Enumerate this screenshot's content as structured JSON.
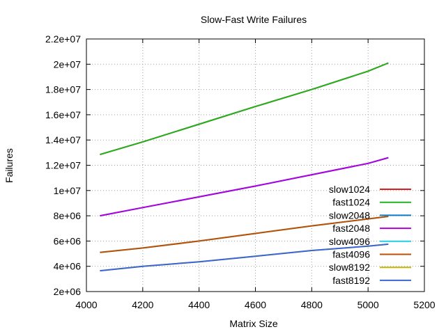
{
  "chart_data": {
    "type": "line",
    "title": "Slow-Fast Write Failures",
    "xlabel": "Matrix Size",
    "ylabel": "Failures",
    "xlim": [
      4000,
      5200
    ],
    "ylim": [
      2000000,
      22000000
    ],
    "xticks": [
      4000,
      4200,
      4400,
      4600,
      4800,
      5000,
      5200
    ],
    "xtick_labels": [
      "4000",
      "4200",
      "4400",
      "4600",
      "4800",
      "5000",
      "5200"
    ],
    "yticks": [
      2000000,
      4000000,
      6000000,
      8000000,
      10000000,
      12000000,
      14000000,
      16000000,
      18000000,
      20000000,
      22000000
    ],
    "ytick_labels": [
      "2e+06",
      "4e+06",
      "6e+06",
      "8e+06",
      "1e+07",
      "1.2e+07",
      "1.4e+07",
      "1.6e+07",
      "1.8e+07",
      "2e+07",
      "2.2e+07"
    ],
    "grid": true,
    "legend_position": "bottom-right",
    "series": [
      {
        "name": "slow1024",
        "color": "#e41a1c",
        "x": [
          4048,
          4200,
          4400,
          4600,
          4800,
          5000,
          5072
        ],
        "y": [
          12850000,
          13850000,
          15250000,
          16650000,
          18000000,
          19450000,
          20100000
        ]
      },
      {
        "name": "fast1024",
        "color": "#1fb31f",
        "x": [
          4048,
          4200,
          4400,
          4600,
          4800,
          5000,
          5072
        ],
        "y": [
          12850000,
          13850000,
          15250000,
          16650000,
          18000000,
          19450000,
          20100000
        ]
      },
      {
        "name": "slow2048",
        "color": "#0a7cc8",
        "x": [
          4048,
          4200,
          4400,
          4600,
          4800,
          5000,
          5072
        ],
        "y": [
          8000000,
          8650000,
          9500000,
          10350000,
          11250000,
          12150000,
          12600000
        ]
      },
      {
        "name": "fast2048",
        "color": "#b000e0",
        "x": [
          4048,
          4200,
          4400,
          4600,
          4800,
          5000,
          5072
        ],
        "y": [
          8000000,
          8650000,
          9500000,
          10350000,
          11250000,
          12150000,
          12600000
        ]
      },
      {
        "name": "slow4096",
        "color": "#1ecfe6",
        "x": [
          4048,
          4200,
          4400,
          4600,
          4800,
          5000,
          5072
        ],
        "y": [
          5100000,
          5450000,
          6000000,
          6600000,
          7200000,
          7750000,
          7950000
        ]
      },
      {
        "name": "fast4096",
        "color": "#c04e00",
        "x": [
          4048,
          4200,
          4400,
          4600,
          4800,
          5000,
          5072
        ],
        "y": [
          5100000,
          5450000,
          6000000,
          6600000,
          7200000,
          7750000,
          7950000
        ]
      },
      {
        "name": "slow8192",
        "color": "#c8b400",
        "x": [
          4048,
          4200,
          4400,
          4600,
          4800,
          5000,
          5072
        ],
        "y": [
          3650000,
          4000000,
          4350000,
          4800000,
          5250000,
          5600000,
          5750000
        ]
      },
      {
        "name": "fast8192",
        "color": "#3a66d8",
        "x": [
          4048,
          4200,
          4400,
          4600,
          4800,
          5000,
          5072
        ],
        "y": [
          3650000,
          4000000,
          4350000,
          4800000,
          5250000,
          5600000,
          5750000
        ]
      }
    ]
  }
}
